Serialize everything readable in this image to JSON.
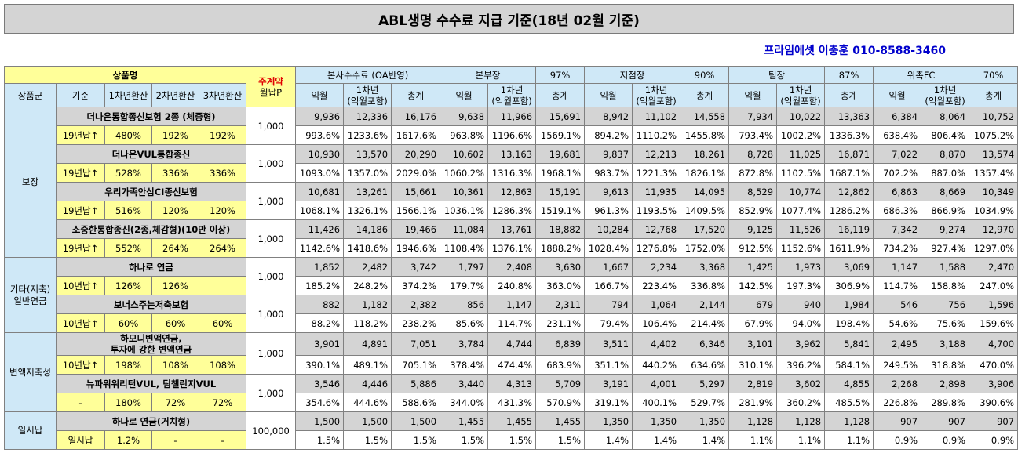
{
  "title": "ABL생명 수수료 지급 기준(18년 02월 기준)",
  "contact": "프라임에셋 이충훈 010-8588-3460",
  "header": {
    "product_name": "상품명",
    "main_contract_1": "주계약",
    "main_contract_2": "월납P",
    "product_group": "상품군",
    "criteria": "기준",
    "y1": "1차년환산",
    "y2": "2차년환산",
    "y3": "3차년환산",
    "sections": [
      {
        "name": "본사수수료 (OA반영)",
        "rate": ""
      },
      {
        "name": "본부장",
        "rate": "97%"
      },
      {
        "name": "지점장",
        "rate": "90%"
      },
      {
        "name": "팀장",
        "rate": "87%"
      },
      {
        "name": "위촉FC",
        "rate": "70%"
      }
    ],
    "sub": {
      "month": "익월",
      "y1a": "1차년",
      "y1b": "(익월포함)",
      "total": "총계"
    }
  },
  "groups": [
    {
      "name": "보장",
      "rows": 4
    },
    {
      "name": "기타(저축)\n일반연금",
      "rows": 2
    },
    {
      "name": "변액저축성",
      "rows": 2
    },
    {
      "name": "일시납",
      "rows": 1
    }
  ],
  "products": [
    {
      "name": "더나은통합종신보험 2종 (체증형)",
      "criteria": "19년납↑",
      "y1": "480%",
      "y2": "192%",
      "y3": "192%",
      "premium": "1,000",
      "amounts": [
        "9,936",
        "12,336",
        "16,176",
        "9,638",
        "11,966",
        "15,691",
        "8,942",
        "11,102",
        "14,558",
        "7,934",
        "10,022",
        "13,363",
        "6,384",
        "8,064",
        "10,752"
      ],
      "rates": [
        "993.6%",
        "1233.6%",
        "1617.6%",
        "963.8%",
        "1196.6%",
        "1569.1%",
        "894.2%",
        "1110.2%",
        "1455.8%",
        "793.4%",
        "1002.2%",
        "1336.3%",
        "638.4%",
        "806.4%",
        "1075.2%"
      ]
    },
    {
      "name": "더나은VUL통합종신",
      "criteria": "19년납↑",
      "y1": "528%",
      "y2": "336%",
      "y3": "336%",
      "premium": "1,000",
      "amounts": [
        "10,930",
        "13,570",
        "20,290",
        "10,602",
        "13,163",
        "19,681",
        "9,837",
        "12,213",
        "18,261",
        "8,728",
        "11,025",
        "16,871",
        "7,022",
        "8,870",
        "13,574"
      ],
      "rates": [
        "1093.0%",
        "1357.0%",
        "2029.0%",
        "1060.2%",
        "1316.3%",
        "1968.1%",
        "983.7%",
        "1221.3%",
        "1826.1%",
        "872.8%",
        "1102.5%",
        "1687.1%",
        "702.2%",
        "887.0%",
        "1357.4%"
      ]
    },
    {
      "name": "우리가족안심CI종신보험",
      "criteria": "19년납↑",
      "y1": "516%",
      "y2": "120%",
      "y3": "120%",
      "premium": "1,000",
      "amounts": [
        "10,681",
        "13,261",
        "15,661",
        "10,361",
        "12,863",
        "15,191",
        "9,613",
        "11,935",
        "14,095",
        "8,529",
        "10,774",
        "12,862",
        "6,863",
        "8,669",
        "10,349"
      ],
      "rates": [
        "1068.1%",
        "1326.1%",
        "1566.1%",
        "1036.1%",
        "1286.3%",
        "1519.1%",
        "961.3%",
        "1193.5%",
        "1409.5%",
        "852.9%",
        "1077.4%",
        "1286.2%",
        "686.3%",
        "866.9%",
        "1034.9%"
      ]
    },
    {
      "name": "소중한통합종신(2종,체감형)(10만 이상)",
      "criteria": "19년납↑",
      "y1": "552%",
      "y2": "264%",
      "y3": "264%",
      "premium": "1,000",
      "amounts": [
        "11,426",
        "14,186",
        "19,466",
        "11,084",
        "13,761",
        "18,882",
        "10,284",
        "12,768",
        "17,520",
        "9,125",
        "11,526",
        "16,119",
        "7,342",
        "9,274",
        "12,970"
      ],
      "rates": [
        "1142.6%",
        "1418.6%",
        "1946.6%",
        "1108.4%",
        "1376.1%",
        "1888.2%",
        "1028.4%",
        "1276.8%",
        "1752.0%",
        "912.5%",
        "1152.6%",
        "1611.9%",
        "734.2%",
        "927.4%",
        "1297.0%"
      ]
    },
    {
      "name": "하나로 연금",
      "criteria": "10년납↑",
      "y1": "126%",
      "y2": "126%",
      "y3": "",
      "premium": "1,000",
      "amounts": [
        "1,852",
        "2,482",
        "3,742",
        "1,797",
        "2,408",
        "3,630",
        "1,667",
        "2,234",
        "3,368",
        "1,425",
        "1,973",
        "3,069",
        "1,147",
        "1,588",
        "2,470"
      ],
      "rates": [
        "185.2%",
        "248.2%",
        "374.2%",
        "179.7%",
        "240.8%",
        "363.0%",
        "166.7%",
        "223.4%",
        "336.8%",
        "142.5%",
        "197.3%",
        "306.9%",
        "114.7%",
        "158.8%",
        "247.0%"
      ]
    },
    {
      "name": "보너스주는저축보험",
      "criteria": "10년납↑",
      "y1": "60%",
      "y2": "60%",
      "y3": "60%",
      "premium": "1,000",
      "amounts": [
        "882",
        "1,182",
        "2,382",
        "856",
        "1,147",
        "2,311",
        "794",
        "1,064",
        "2,144",
        "679",
        "940",
        "1,984",
        "546",
        "756",
        "1,596"
      ],
      "rates": [
        "88.2%",
        "118.2%",
        "238.2%",
        "85.6%",
        "114.7%",
        "231.1%",
        "79.4%",
        "106.4%",
        "214.4%",
        "67.9%",
        "94.0%",
        "198.4%",
        "54.6%",
        "75.6%",
        "159.6%"
      ]
    },
    {
      "name": "하모니변액연금,\n투자에 강한 변액연금",
      "criteria": "10년납↑",
      "y1": "198%",
      "y2": "108%",
      "y3": "108%",
      "premium": "1,000",
      "amounts": [
        "3,901",
        "4,891",
        "7,051",
        "3,784",
        "4,744",
        "6,839",
        "3,511",
        "4,402",
        "6,346",
        "3,101",
        "3,962",
        "5,841",
        "2,495",
        "3,188",
        "4,700"
      ],
      "rates": [
        "390.1%",
        "489.1%",
        "705.1%",
        "378.4%",
        "474.4%",
        "683.9%",
        "351.1%",
        "440.2%",
        "634.6%",
        "310.1%",
        "396.2%",
        "584.1%",
        "249.5%",
        "318.8%",
        "470.0%"
      ]
    },
    {
      "name": "뉴파워워리턴VUL, 팀챌린지VUL",
      "criteria": "-",
      "y1": "180%",
      "y2": "72%",
      "y3": "72%",
      "premium": "1,000",
      "amounts": [
        "3,546",
        "4,446",
        "5,886",
        "3,440",
        "4,313",
        "5,709",
        "3,191",
        "4,001",
        "5,297",
        "2,819",
        "3,602",
        "4,855",
        "2,268",
        "2,898",
        "3,906"
      ],
      "rates": [
        "354.6%",
        "444.6%",
        "588.6%",
        "344.0%",
        "431.3%",
        "570.9%",
        "319.1%",
        "400.1%",
        "529.7%",
        "281.9%",
        "360.2%",
        "485.5%",
        "226.8%",
        "289.8%",
        "390.6%"
      ]
    },
    {
      "name": "하나로 연금(거치형)",
      "criteria": "일시납",
      "y1": "1.2%",
      "y2": "-",
      "y3": "-",
      "premium": "100,000",
      "amounts": [
        "1,500",
        "1,500",
        "1,500",
        "1,455",
        "1,455",
        "1,455",
        "1,350",
        "1,350",
        "1,350",
        "1,128",
        "1,128",
        "1,128",
        "907",
        "907",
        "907"
      ],
      "rates": [
        "1.5%",
        "1.5%",
        "1.5%",
        "1.5%",
        "1.5%",
        "1.5%",
        "1.4%",
        "1.4%",
        "1.4%",
        "1.1%",
        "1.1%",
        "1.1%",
        "0.9%",
        "0.9%",
        "0.9%"
      ]
    }
  ]
}
